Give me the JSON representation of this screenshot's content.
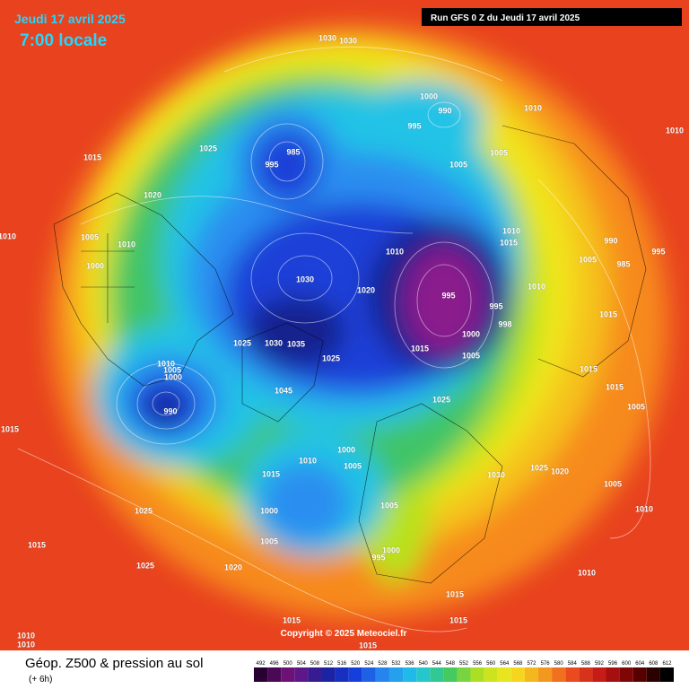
{
  "header": {
    "date": "Jeudi 17 avril 2025",
    "time": "7:00 locale",
    "run": "Run GFS 0 Z du Jeudi 17 avril 2025"
  },
  "map": {
    "pressure_labels": [
      "1030",
      "1030",
      "1000",
      "990",
      "995",
      "1010",
      "1010",
      "1025",
      "1015",
      "985",
      "995",
      "1005",
      "1005",
      "1020",
      "1010",
      "1005",
      "1010",
      "1000",
      "1010",
      "1030",
      "1020",
      "995",
      "990",
      "985",
      "995",
      "1005",
      "1010",
      "1015",
      "1010",
      "995",
      "998",
      "1000",
      "1005",
      "1015",
      "1025",
      "1025",
      "1030",
      "1035",
      "1015",
      "1010",
      "1005",
      "1000",
      "990",
      "1045",
      "1025",
      "1015",
      "1015",
      "1005",
      "1015",
      "1000",
      "1010",
      "1005",
      "1015",
      "1030",
      "1025",
      "1020",
      "1005",
      "1025",
      "1000",
      "1005",
      "1010",
      "1015",
      "1005",
      "1025",
      "1020",
      "995",
      "1000",
      "1010",
      "1015",
      "1015",
      "1015",
      "1010",
      "1010",
      "1015"
    ],
    "copyright": "Copyright © 2025 Meteociel.fr"
  },
  "footer": {
    "title": "Géop. Z500 & pression au sol",
    "step": "(+ 6h)",
    "scale": [
      492,
      496,
      500,
      504,
      508,
      512,
      516,
      520,
      524,
      528,
      532,
      536,
      540,
      544,
      548,
      552,
      556,
      560,
      564,
      568,
      572,
      576,
      580,
      584,
      588,
      592,
      596,
      600,
      604,
      608,
      612
    ]
  }
}
